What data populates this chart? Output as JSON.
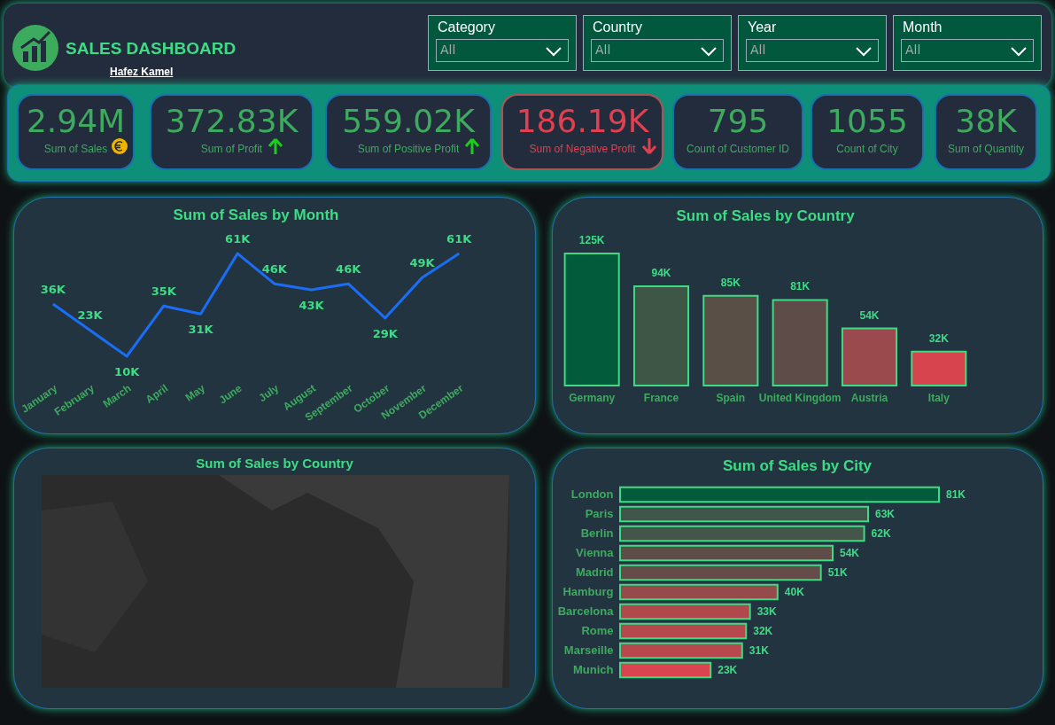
{
  "chart_data": [
    {
      "type": "other",
      "title": "SALES DASHBOARD",
      "annotations": [
        "Hafez Kamel",
        "Category",
        "All",
        "Country",
        "All",
        "Year",
        "All",
        "Month",
        "All"
      ]
    },
    {
      "type": "other",
      "annotations": [
        "2.94M",
        "Sum of  Sales",
        "372.83K",
        "Sum of  Profit",
        "559.02K",
        "Sum of Positive Profit",
        "186.19K",
        "Sum of Negative Profit",
        "795",
        "Count of Customer ID",
        "1055",
        "Count of City",
        "38K",
        "Sum of  Quantity"
      ]
    },
    {
      "type": "line",
      "title": "Sum of Sales by Month",
      "categories": [
        "January",
        "February",
        "March",
        "April",
        "May",
        "June",
        "July",
        "August",
        "September",
        "October",
        "November",
        "December"
      ],
      "series": [
        {
          "color": "#1a6ef5",
          "values": [
            36000,
            23000,
            10000,
            35000,
            31000,
            61000,
            46000,
            43000,
            46000,
            29000,
            49000,
            61000
          ],
          "value_labels": [
            "36K",
            "23K",
            "10K",
            "35K",
            "31K",
            "61K",
            "46K",
            "43K",
            "46K",
            "29K",
            "49K",
            "61K"
          ]
        }
      ]
    },
    {
      "type": "bar",
      "title": "Sum of Sales by Country",
      "categories": [
        "Germany",
        "France",
        "Spain",
        "United Kingdom",
        "Austria",
        "Italy"
      ],
      "values": [
        125000,
        94000,
        85000,
        81000,
        54000,
        32000
      ],
      "value_labels": [
        "125K",
        "94K",
        "85K",
        "81K",
        "54K",
        "32K"
      ],
      "colors": [
        "#025c3c",
        "#3d5645",
        "#5a4f47",
        "#5e4c48",
        "#9a4a4c",
        "#d8444e"
      ]
    },
    {
      "type": "other",
      "title": "Sum of Sales by Country"
    },
    {
      "type": "bar",
      "orientation": "horizontal",
      "title": "Sum of Sales by City",
      "categories": [
        "London",
        "Paris",
        "Berlin",
        "Vienna",
        "Madrid",
        "Hamburg",
        "Barcelona",
        "Rome",
        "Marseille",
        "Munich"
      ],
      "values": [
        81000,
        63000,
        62000,
        54000,
        51000,
        40000,
        33000,
        32000,
        31000,
        23000
      ],
      "value_labels": [
        "81K",
        "63K",
        "62K",
        "54K",
        "51K",
        "40K",
        "33K",
        "32K",
        "31K",
        "23K"
      ],
      "colors": [
        "#025c3c",
        "#41564a",
        "#44564a",
        "#5f4d48",
        "#664c48",
        "#954a4b",
        "#b0484c",
        "#b4484d",
        "#b8474e",
        "#d9444f"
      ]
    }
  ]
}
